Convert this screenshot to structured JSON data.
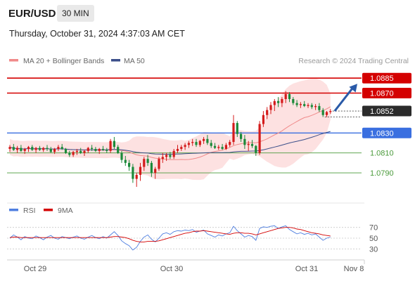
{
  "header": {
    "pair": "EUR/USD",
    "timeframe": "30 MIN",
    "timestamp": "Thursday, October 31, 2024 4:37:03 AM CET"
  },
  "legend": {
    "ma20": "MA 20 + Bollinger Bands",
    "ma50": "MA 50",
    "credit": "Research © 2024 Trading Central"
  },
  "rsi_legend": {
    "rsi": "RSI",
    "ma9": "9MA"
  },
  "colors": {
    "up": "#d41b1b",
    "down": "#1b8a3a",
    "resistance": "#d40000",
    "support": "#3a6fe0",
    "minor_support": "#4a9a3a",
    "ma20": "#f08a8a",
    "band_fill": "#fde1e1",
    "ma50": "#3b4f8a",
    "rsi": "#4f7fe0",
    "rsi_ma": "#d40000",
    "arrow": "#2a5aa8"
  },
  "chart_data": [
    {
      "type": "candlestick",
      "title": "EUR/USD 30 MIN",
      "x_ticks": [
        "Oct 29",
        "Oct 30",
        "Oct 31",
        "Nov 8"
      ],
      "ylim": [
        1.0764,
        1.0895
      ],
      "levels": [
        {
          "value": 1.0885,
          "label": "1.0885",
          "kind": "resistance",
          "boxed": true
        },
        {
          "value": 1.087,
          "label": "1.0870",
          "kind": "resistance",
          "boxed": true
        },
        {
          "value": 1.0852,
          "label": "1.0852",
          "kind": "last",
          "boxed": true
        },
        {
          "value": 1.083,
          "label": "1.0830",
          "kind": "support",
          "boxed": true
        },
        {
          "value": 1.081,
          "label": "1.0810",
          "kind": "minor",
          "boxed": false
        },
        {
          "value": 1.079,
          "label": "1.0790",
          "kind": "minor",
          "boxed": false
        }
      ],
      "projection": {
        "from": 1.0852,
        "to": 1.0885
      },
      "candles": [
        [
          1.0814,
          1.0818,
          1.0811,
          1.0816
        ],
        [
          1.0816,
          1.0819,
          1.0812,
          1.0813
        ],
        [
          1.0813,
          1.0817,
          1.081,
          1.0815
        ],
        [
          1.0815,
          1.0818,
          1.0811,
          1.0812
        ],
        [
          1.0812,
          1.0815,
          1.0809,
          1.0814
        ],
        [
          1.0814,
          1.0817,
          1.0811,
          1.0816
        ],
        [
          1.0816,
          1.0818,
          1.0812,
          1.0813
        ],
        [
          1.0813,
          1.0816,
          1.081,
          1.0815
        ],
        [
          1.0815,
          1.0817,
          1.0812,
          1.0813
        ],
        [
          1.0813,
          1.0816,
          1.0811,
          1.0815
        ],
        [
          1.0815,
          1.0818,
          1.0812,
          1.0814
        ],
        [
          1.0814,
          1.0816,
          1.081,
          1.0811
        ],
        [
          1.0811,
          1.0815,
          1.0809,
          1.0814
        ],
        [
          1.0814,
          1.0818,
          1.0812,
          1.0816
        ],
        [
          1.0816,
          1.0819,
          1.0813,
          1.0814
        ],
        [
          1.0814,
          1.0815,
          1.0809,
          1.081
        ],
        [
          1.081,
          1.0812,
          1.0806,
          1.0808
        ],
        [
          1.0808,
          1.0812,
          1.0806,
          1.0811
        ],
        [
          1.0811,
          1.0814,
          1.0808,
          1.0812
        ],
        [
          1.0812,
          1.0815,
          1.0809,
          1.081
        ],
        [
          1.081,
          1.0813,
          1.0807,
          1.0812
        ],
        [
          1.0812,
          1.0816,
          1.081,
          1.0815
        ],
        [
          1.0815,
          1.0818,
          1.0812,
          1.0814
        ],
        [
          1.0814,
          1.0816,
          1.0811,
          1.0812
        ],
        [
          1.0812,
          1.0815,
          1.0809,
          1.0814
        ],
        [
          1.0814,
          1.0817,
          1.0812,
          1.0813
        ],
        [
          1.0813,
          1.0815,
          1.081,
          1.0812
        ],
        [
          1.0812,
          1.0824,
          1.081,
          1.0822
        ],
        [
          1.0822,
          1.0826,
          1.0814,
          1.0816
        ],
        [
          1.0816,
          1.0818,
          1.0809,
          1.081
        ],
        [
          1.081,
          1.0812,
          1.08,
          1.0803
        ],
        [
          1.0803,
          1.0807,
          1.0797,
          1.08
        ],
        [
          1.08,
          1.0803,
          1.0792,
          1.0796
        ],
        [
          1.0796,
          1.0799,
          1.078,
          1.0784
        ],
        [
          1.0784,
          1.079,
          1.0776,
          1.0788
        ],
        [
          1.0788,
          1.08,
          1.0782,
          1.0796
        ],
        [
          1.0796,
          1.0806,
          1.0792,
          1.0804
        ],
        [
          1.0804,
          1.0808,
          1.0797,
          1.08
        ],
        [
          1.08,
          1.0802,
          1.0786,
          1.079
        ],
        [
          1.079,
          1.0796,
          1.0784,
          1.0794
        ],
        [
          1.0794,
          1.0806,
          1.0792,
          1.0804
        ],
        [
          1.0804,
          1.081,
          1.08,
          1.0806
        ],
        [
          1.0806,
          1.081,
          1.0802,
          1.0808
        ],
        [
          1.0808,
          1.0811,
          1.0804,
          1.0806
        ],
        [
          1.0806,
          1.0814,
          1.0804,
          1.0812
        ],
        [
          1.0812,
          1.0818,
          1.081,
          1.0814
        ],
        [
          1.0814,
          1.0818,
          1.0812,
          1.0816
        ],
        [
          1.0816,
          1.082,
          1.0813,
          1.0818
        ],
        [
          1.0818,
          1.0822,
          1.0815,
          1.082
        ],
        [
          1.082,
          1.0824,
          1.0817,
          1.0821
        ],
        [
          1.0821,
          1.0824,
          1.0816,
          1.0818
        ],
        [
          1.0818,
          1.0823,
          1.0816,
          1.0822
        ],
        [
          1.0822,
          1.0826,
          1.0819,
          1.0824
        ],
        [
          1.0824,
          1.0828,
          1.0818,
          1.082
        ],
        [
          1.082,
          1.0823,
          1.0815,
          1.0817
        ],
        [
          1.0817,
          1.082,
          1.0814,
          1.0815
        ],
        [
          1.0815,
          1.0818,
          1.0813,
          1.0816
        ],
        [
          1.0816,
          1.0819,
          1.0813,
          1.0814
        ],
        [
          1.0814,
          1.082,
          1.0813,
          1.0818
        ],
        [
          1.0818,
          1.0823,
          1.0816,
          1.0821
        ],
        [
          1.0821,
          1.0848,
          1.0818,
          1.084
        ],
        [
          1.084,
          1.0842,
          1.0826,
          1.0829
        ],
        [
          1.0829,
          1.0831,
          1.0821,
          1.0824
        ],
        [
          1.0824,
          1.0828,
          1.0814,
          1.0818
        ],
        [
          1.0818,
          1.0822,
          1.0812,
          1.0819
        ],
        [
          1.0819,
          1.0823,
          1.0815,
          1.0817
        ],
        [
          1.0817,
          1.0818,
          1.0807,
          1.081
        ],
        [
          1.081,
          1.0842,
          1.0808,
          1.0839
        ],
        [
          1.0839,
          1.0852,
          1.0836,
          1.0848
        ],
        [
          1.0848,
          1.0856,
          1.0844,
          1.0853
        ],
        [
          1.0853,
          1.0861,
          1.0849,
          1.0858
        ],
        [
          1.0858,
          1.0864,
          1.0852,
          1.0862
        ],
        [
          1.0862,
          1.0866,
          1.0856,
          1.086
        ],
        [
          1.086,
          1.0866,
          1.0856,
          1.0864
        ],
        [
          1.0864,
          1.0872,
          1.086,
          1.0869
        ],
        [
          1.0869,
          1.0871,
          1.0861,
          1.0864
        ],
        [
          1.0864,
          1.0866,
          1.0858,
          1.086
        ],
        [
          1.086,
          1.0863,
          1.0856,
          1.0858
        ],
        [
          1.0858,
          1.0861,
          1.0855,
          1.0859
        ],
        [
          1.0859,
          1.0862,
          1.0856,
          1.0857
        ],
        [
          1.0857,
          1.086,
          1.0855,
          1.0858
        ],
        [
          1.0858,
          1.086,
          1.0854,
          1.0856
        ],
        [
          1.0856,
          1.0859,
          1.0853,
          1.0857
        ],
        [
          1.0857,
          1.086,
          1.0851,
          1.0853
        ],
        [
          1.0853,
          1.0855,
          1.0846,
          1.0848
        ],
        [
          1.0848,
          1.0852,
          1.0846,
          1.0851
        ],
        [
          1.0851,
          1.0854,
          1.0849,
          1.0852
        ]
      ]
    },
    {
      "type": "line",
      "title": "RSI",
      "y_ticks": [
        70,
        50,
        30
      ],
      "ylim": [
        20,
        80
      ],
      "series": [
        {
          "name": "RSI",
          "values": [
            50,
            56,
            52,
            47,
            53,
            50,
            49,
            54,
            51,
            47,
            52,
            55,
            50,
            48,
            53,
            51,
            49,
            52,
            54,
            50,
            48,
            52,
            55,
            51,
            49,
            53,
            50,
            56,
            62,
            55,
            45,
            40,
            36,
            28,
            33,
            44,
            52,
            56,
            48,
            43,
            50,
            58,
            60,
            57,
            62,
            64,
            63,
            65,
            64,
            66,
            61,
            63,
            65,
            58,
            55,
            52,
            56,
            54,
            58,
            60,
            72,
            64,
            58,
            52,
            55,
            53,
            46,
            68,
            71,
            70,
            72,
            73,
            68,
            71,
            73,
            66,
            62,
            58,
            60,
            57,
            59,
            56,
            58,
            52,
            46,
            50,
            52
          ]
        },
        {
          "name": "9MA",
          "values": [
            51,
            52,
            52,
            51,
            51,
            51,
            51,
            51,
            51,
            51,
            51,
            51,
            51,
            51,
            51,
            51,
            51,
            51,
            51,
            51,
            51,
            51,
            51,
            51,
            51,
            51,
            51,
            52,
            53,
            53,
            52,
            51,
            49,
            46,
            44,
            43,
            43,
            44,
            44,
            44,
            45,
            47,
            49,
            51,
            53,
            55,
            57,
            59,
            60,
            62,
            63,
            63,
            64,
            63,
            62,
            61,
            60,
            59,
            58,
            57,
            59,
            60,
            60,
            59,
            59,
            58,
            56,
            58,
            60,
            62,
            64,
            66,
            68,
            69,
            70,
            70,
            69,
            67,
            66,
            64,
            62,
            60,
            59,
            58,
            56,
            55,
            54
          ]
        }
      ]
    }
  ]
}
